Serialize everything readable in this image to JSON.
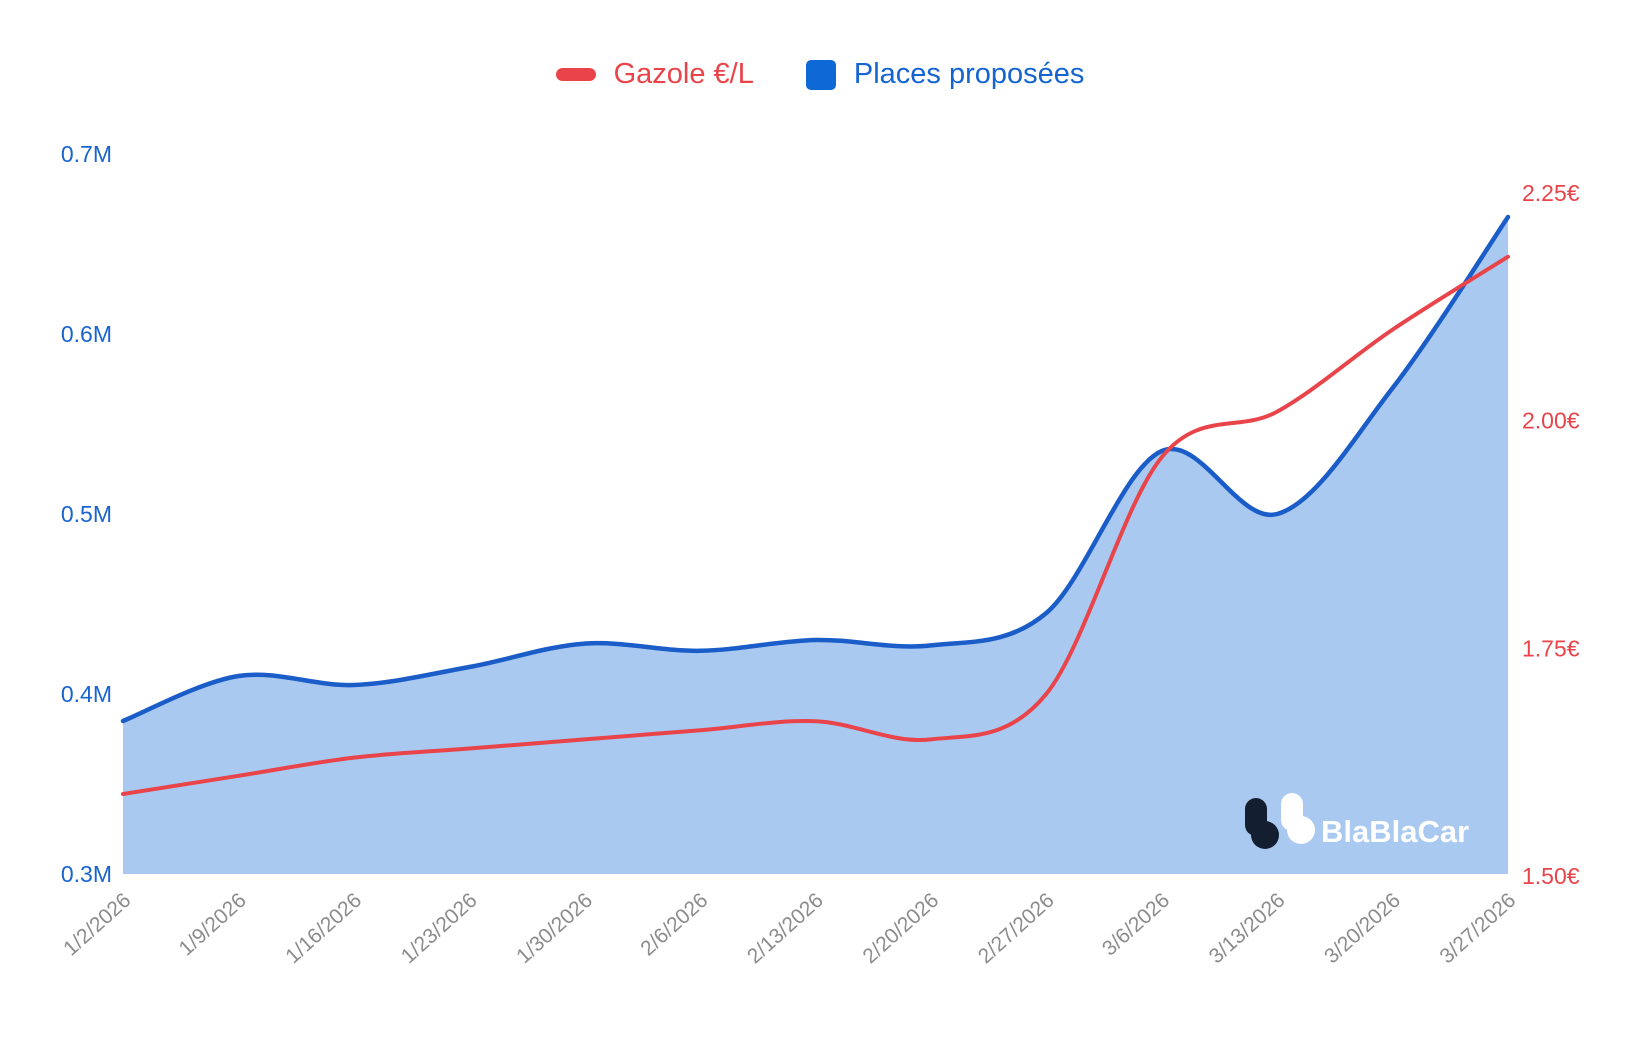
{
  "legend": {
    "gazole_label": "Gazole €/L",
    "places_label": "Places proposées"
  },
  "logo": {
    "text": "BlaBlaCar"
  },
  "colors": {
    "red": "#e8444a",
    "blue_line": "#1a5cc8",
    "area_fill": "#a9c9f1",
    "axis_blue": "#1a64d2",
    "axis_red": "#e8444a",
    "x_label_gray": "#8c8c8c",
    "logo_navy": "#131f31",
    "logo_white": "#ffffff",
    "background": "#ffffff"
  },
  "chart_data": {
    "type": "area",
    "title": "",
    "x": [
      "1/2/2026",
      "1/9/2026",
      "1/16/2026",
      "1/23/2026",
      "1/30/2026",
      "2/6/2026",
      "2/13/2026",
      "2/20/2026",
      "2/27/2026",
      "3/6/2026",
      "3/13/2026",
      "3/20/2026",
      "3/27/2026"
    ],
    "series": [
      {
        "name": "Places proposées",
        "type": "area",
        "axis": "left",
        "unit": "M seats",
        "values": [
          0.385,
          0.41,
          0.405,
          0.415,
          0.428,
          0.424,
          0.43,
          0.427,
          0.445,
          0.535,
          0.5,
          0.57,
          0.665
        ]
      },
      {
        "name": "Gazole €/L",
        "type": "line",
        "axis": "right",
        "unit": "€/L",
        "values": [
          1.59,
          1.61,
          1.63,
          1.64,
          1.65,
          1.66,
          1.67,
          1.65,
          1.7,
          1.96,
          2.01,
          2.1,
          2.18
        ]
      }
    ],
    "left_axis": {
      "min": 0.3,
      "max": 0.7,
      "tick_values": [
        0.7,
        0.6,
        0.5,
        0.4,
        0.3
      ],
      "tick_labels": [
        "0.7M",
        "0.6M",
        "0.5M",
        "0.4M",
        "0.3M"
      ]
    },
    "right_axis": {
      "min": 1.5,
      "max": 2.25,
      "tick_values": [
        2.25,
        2.0,
        1.75,
        1.5
      ],
      "tick_labels": [
        "2.25€",
        "2.00€",
        "1.75€",
        "1.50€"
      ]
    },
    "grid": false,
    "legend_position": "top",
    "smooth": true
  }
}
